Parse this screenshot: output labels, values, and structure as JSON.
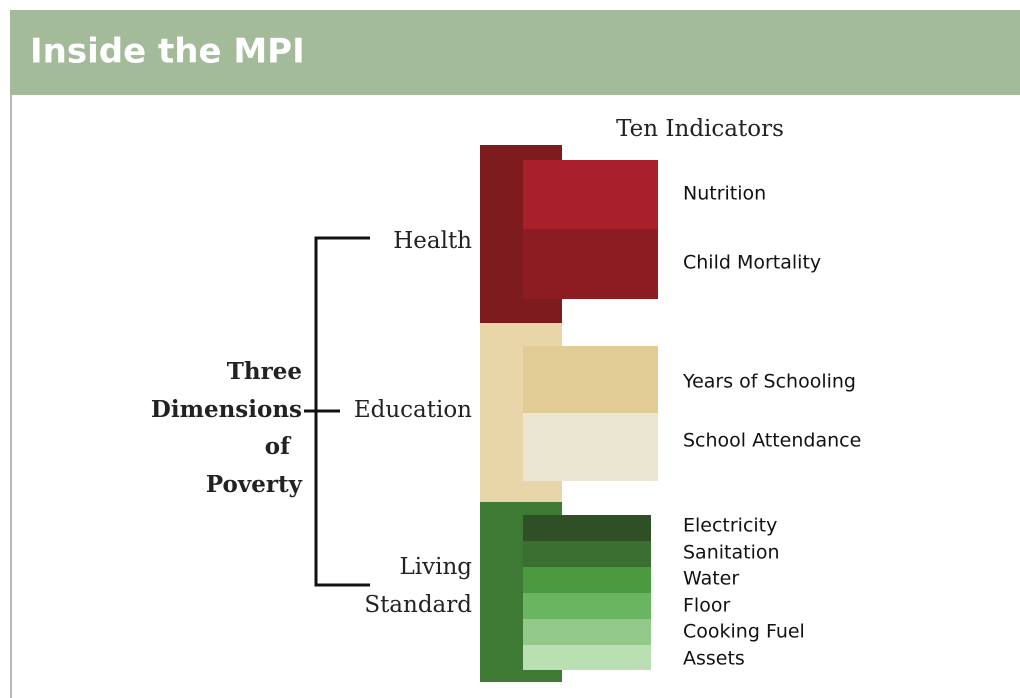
{
  "header": {
    "title": "Inside the MPI"
  },
  "indicators_heading": "Ten Indicators",
  "group_label": [
    "Three",
    "Dimensions",
    "of",
    "Poverty"
  ],
  "dimensions": [
    {
      "name": [
        "Health"
      ],
      "indicators": [
        "Nutrition",
        "Child Mortality"
      ]
    },
    {
      "name": [
        "Education"
      ],
      "indicators": [
        "Years of Schooling",
        "School Attendance"
      ]
    },
    {
      "name": [
        "Living",
        "Standard"
      ],
      "indicators": [
        "Electricity",
        "Sanitation",
        "Water",
        "Floor",
        "Cooking Fuel",
        "Assets"
      ]
    }
  ]
}
